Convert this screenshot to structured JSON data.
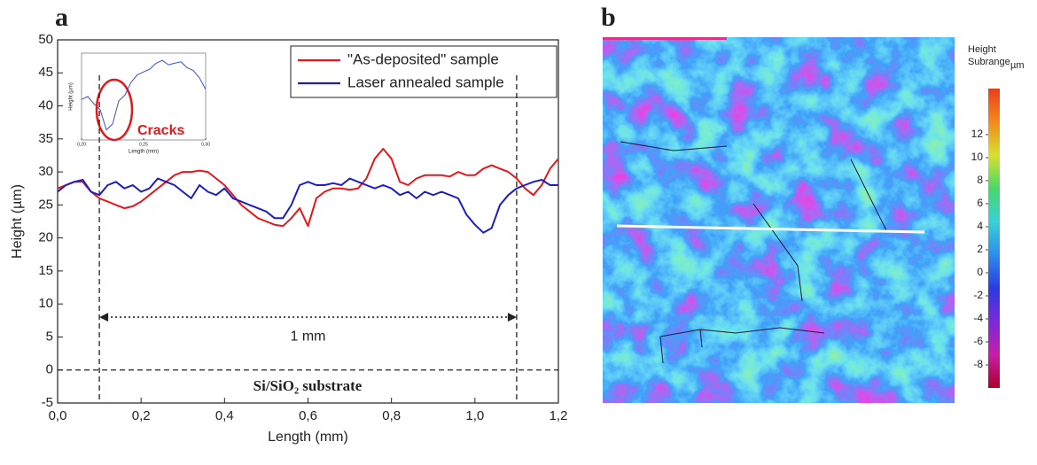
{
  "chart_data": [
    {
      "type": "line",
      "panel_label": "a",
      "xlabel": "Length (mm)",
      "ylabel": "Height (µm)",
      "x": [
        0,
        0.02,
        0.04,
        0.06,
        0.08,
        0.1,
        0.12,
        0.14,
        0.16,
        0.18,
        0.2,
        0.22,
        0.24,
        0.26,
        0.28,
        0.3,
        0.32,
        0.34,
        0.36,
        0.38,
        0.4,
        0.42,
        0.44,
        0.46,
        0.48,
        0.5,
        0.52,
        0.54,
        0.56,
        0.58,
        0.6,
        0.62,
        0.64,
        0.66,
        0.68,
        0.7,
        0.72,
        0.74,
        0.76,
        0.78,
        0.8,
        0.82,
        0.84,
        0.86,
        0.88,
        0.9,
        0.92,
        0.94,
        0.96,
        0.98,
        1.0,
        1.02,
        1.04,
        1.06,
        1.08,
        1.1,
        1.12,
        1.14,
        1.16,
        1.18,
        1.2
      ],
      "series": [
        {
          "name": "\"As-deposited\" sample",
          "color": "#e8161b",
          "values": [
            27.5,
            28,
            28.5,
            28.5,
            27,
            26,
            25.5,
            25,
            24.5,
            24.8,
            25.5,
            26.5,
            27.5,
            28.5,
            29.5,
            30,
            30,
            30.2,
            30,
            29,
            28,
            26.5,
            25,
            24,
            23,
            22.5,
            22,
            21.8,
            23,
            24.5,
            21.8,
            26,
            27,
            27.5,
            27.5,
            27.3,
            27.5,
            29,
            32,
            33.5,
            32,
            28.5,
            28,
            29,
            29.5,
            29.5,
            29.5,
            29.3,
            30,
            29.5,
            29.5,
            30.5,
            31,
            30.5,
            30,
            29,
            27.5,
            26.5,
            28,
            30.5,
            32
          ]
        },
        {
          "name": "Laser annealed sample",
          "color": "#1d1dc4",
          "values": [
            27,
            28,
            28.5,
            28.8,
            27,
            26.5,
            28,
            28.5,
            27.5,
            28,
            27,
            27.5,
            29,
            28.5,
            28,
            27,
            26,
            28,
            27,
            26.5,
            27.5,
            26,
            25.5,
            25,
            24.5,
            24,
            23,
            23,
            25,
            28,
            28.5,
            28,
            28,
            28.3,
            28,
            29,
            28.5,
            28,
            27.5,
            28,
            27.5,
            26.5,
            27,
            26,
            27,
            26.5,
            27,
            26.5,
            26,
            23.5,
            22,
            20.8,
            21.5,
            25,
            26.5,
            27.5,
            28,
            28.5,
            28.8,
            28,
            28
          ]
        }
      ],
      "xlim": [
        0,
        1.2
      ],
      "ylim": [
        -5,
        50
      ],
      "xticks": [
        {
          "value": 0,
          "label": "0,0"
        },
        {
          "value": 0.2,
          "label": "0,2"
        },
        {
          "value": 0.4,
          "label": "0,4"
        },
        {
          "value": 0.6,
          "label": "0,6"
        },
        {
          "value": 0.8,
          "label": "0,8"
        },
        {
          "value": 1.0,
          "label": "1,0"
        },
        {
          "value": 1.2,
          "label": "1,2"
        }
      ],
      "yticks": [
        -5,
        0,
        5,
        10,
        15,
        20,
        25,
        30,
        35,
        40,
        45,
        50
      ],
      "legend": "upper right",
      "reference_lines": {
        "x": [
          0.1,
          1.1
        ],
        "y": [
          0
        ]
      },
      "span": {
        "from": 0.1,
        "to": 1.1,
        "y": 8,
        "label": "1 mm"
      },
      "annotation": "Si/SiO₂ substrate"
    },
    {
      "type": "line",
      "xlabel": "Length (mm)",
      "ylabel": "Height (µm)",
      "annotation": "Cracks",
      "x": [
        0.2,
        0.205,
        0.21,
        0.215,
        0.22,
        0.225,
        0.23,
        0.235,
        0.24,
        0.245,
        0.25,
        0.255,
        0.26,
        0.265,
        0.27,
        0.275,
        0.28,
        0.285,
        0.29,
        0.295,
        0.3
      ],
      "series": [
        {
          "color": "#3b4fd6",
          "values": [
            28.3,
            28.5,
            28,
            27.6,
            26.2,
            26.6,
            28.2,
            28.6,
            29.5,
            30,
            30.2,
            30.4,
            30.8,
            31,
            30.7,
            30.8,
            30.9,
            30.5,
            30.3,
            29.8,
            29
          ]
        }
      ],
      "xlim": [
        0.2,
        0.3
      ],
      "ylim": [
        25.5,
        31.5
      ],
      "xticks": [
        {
          "value": 0.2,
          "label": "0,20"
        },
        {
          "value": 0.25,
          "label": "0,25"
        },
        {
          "value": 0.3,
          "label": "0,30"
        }
      ]
    },
    {
      "type": "colorbar",
      "panel_label": "b",
      "title": "Height",
      "subtitle": "Subrange",
      "unit": "µm",
      "ylim": [
        -10,
        16
      ],
      "yticks": [
        -8,
        -6,
        -4,
        -2,
        0,
        2,
        4,
        6,
        8,
        10,
        12
      ],
      "colors": [
        "#b0002a",
        "#c41ea8",
        "#7a2ad6",
        "#2a3be0",
        "#2f8de8",
        "#39d0d8",
        "#47d86a",
        "#d8e030",
        "#f08a1c",
        "#e8401a"
      ]
    }
  ]
}
